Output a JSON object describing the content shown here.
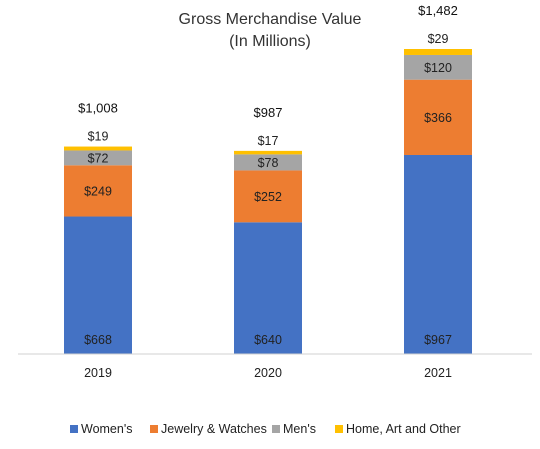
{
  "chart_data": {
    "type": "bar",
    "stacked": true,
    "title": "Gross Merchandise Value",
    "subtitle": "(In Millions)",
    "categories": [
      "2019",
      "2020",
      "2021"
    ],
    "series": [
      {
        "name": "Women's",
        "color": "#4472C4",
        "values": [
          668,
          640,
          967
        ],
        "labels": [
          "$668",
          "$640",
          "$967"
        ]
      },
      {
        "name": "Jewelry & Watches",
        "color": "#ED7D31",
        "values": [
          249,
          252,
          366
        ],
        "labels": [
          "$249",
          "$252",
          "$366"
        ]
      },
      {
        "name": "Men's",
        "color": "#A5A5A5",
        "values": [
          72,
          78,
          120
        ],
        "labels": [
          "$72",
          "$78",
          "$120"
        ]
      },
      {
        "name": "Home, Art and Other",
        "color": "#FFC000",
        "values": [
          19,
          17,
          29
        ],
        "labels": [
          "$19",
          "$17",
          "$29"
        ]
      }
    ],
    "totals": [
      "$1,008",
      "$987",
      "$1,482"
    ],
    "legend_position": "bottom",
    "grid": false
  }
}
